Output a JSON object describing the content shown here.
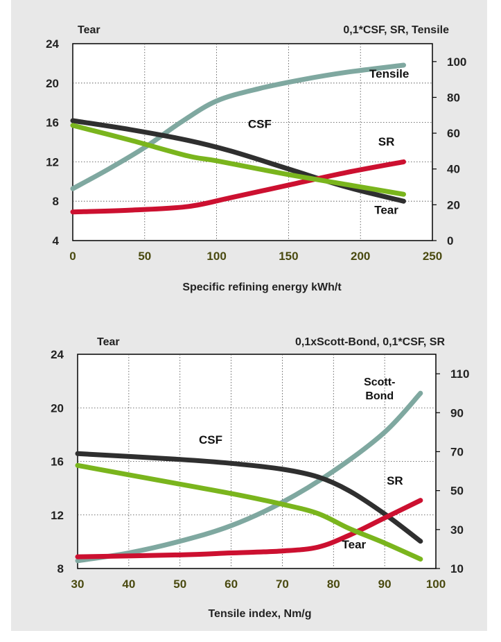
{
  "colors": {
    "background": "#e8e8e8",
    "tear": "#7ab51d",
    "csf": "#2f2f2f",
    "sr": "#cc1030",
    "tensile": "#7fa8a0",
    "scott_bond": "#7fa8a0",
    "x_tick_text": "#4a4a10"
  },
  "chart_data": [
    {
      "type": "line",
      "title": "",
      "xlabel": "Specific refining energy kWh/t",
      "y_left_label": "Tear",
      "y_right_label": "0,1*CSF, SR, Tensile",
      "xlim": [
        0,
        250
      ],
      "ylim_left": [
        4,
        24
      ],
      "ylim_right": [
        0,
        110
      ],
      "x_ticks": [
        "0",
        "50",
        "100",
        "150",
        "200",
        "250"
      ],
      "y_left_ticks": [
        "4",
        "8",
        "12",
        "16",
        "20",
        "24"
      ],
      "y_right_ticks": [
        "0",
        "20",
        "40",
        "60",
        "80",
        "100"
      ],
      "grid": true,
      "series": [
        {
          "name": "Tensile",
          "axis": "right",
          "color_key": "tensile",
          "label_anchor": [
            220,
            91
          ],
          "points": [
            [
              0,
              29
            ],
            [
              25,
              40
            ],
            [
              50,
              52
            ],
            [
              75,
              66
            ],
            [
              100,
              78
            ],
            [
              130,
              85
            ],
            [
              160,
              90
            ],
            [
              190,
              94
            ],
            [
              230,
              98
            ]
          ]
        },
        {
          "name": "CSF",
          "axis": "right",
          "color_key": "csf",
          "label_anchor": [
            130,
            63
          ],
          "points": [
            [
              0,
              67
            ],
            [
              40,
              62
            ],
            [
              80,
              56
            ],
            [
              110,
              50
            ],
            [
              150,
              40
            ],
            [
              190,
              30
            ],
            [
              230,
              22
            ]
          ]
        },
        {
          "name": "SR",
          "axis": "right",
          "color_key": "sr",
          "label_anchor": [
            218,
            53
          ],
          "points": [
            [
              0,
              16
            ],
            [
              40,
              17
            ],
            [
              80,
              19
            ],
            [
              110,
              24
            ],
            [
              150,
              31
            ],
            [
              190,
              38
            ],
            [
              230,
              44
            ]
          ]
        },
        {
          "name": "Tear",
          "axis": "left",
          "color_key": "tear",
          "label_anchor": [
            218,
            6.7
          ],
          "points": [
            [
              0,
              15.7
            ],
            [
              40,
              14.2
            ],
            [
              80,
              12.6
            ],
            [
              100,
              12.1
            ],
            [
              150,
              10.7
            ],
            [
              190,
              9.7
            ],
            [
              230,
              8.7
            ]
          ]
        }
      ]
    },
    {
      "type": "line",
      "title": "",
      "xlabel": "Tensile index, Nm/g",
      "y_left_label": "Tear",
      "y_right_label": "0,1xScott-Bond, 0,1*CSF, SR",
      "xlim": [
        30,
        100
      ],
      "ylim_left": [
        8,
        24
      ],
      "ylim_right": [
        10,
        120
      ],
      "x_ticks": [
        "30",
        "40",
        "50",
        "60",
        "70",
        "80",
        "90",
        "100"
      ],
      "y_left_ticks": [
        "8",
        "12",
        "16",
        "20",
        "24"
      ],
      "y_right_ticks": [
        "10",
        "30",
        "50",
        "70",
        "90",
        "110"
      ],
      "grid": true,
      "series": [
        {
          "name": "Scott-Bond",
          "label_lines": [
            "Scott-",
            "Bond"
          ],
          "axis": "right",
          "color_key": "scott_bond",
          "label_anchor": [
            89,
            104
          ],
          "points": [
            [
              30,
              14
            ],
            [
              40,
              18
            ],
            [
              50,
              24
            ],
            [
              60,
              32
            ],
            [
              70,
              44
            ],
            [
              80,
              60
            ],
            [
              90,
              80
            ],
            [
              97,
              100
            ]
          ]
        },
        {
          "name": "CSF",
          "axis": "right",
          "color_key": "csf",
          "label_anchor": [
            56,
            74
          ],
          "points": [
            [
              30,
              69
            ],
            [
              50,
              66
            ],
            [
              60,
              64
            ],
            [
              70,
              61
            ],
            [
              77,
              57
            ],
            [
              83,
              50
            ],
            [
              90,
              38
            ],
            [
              97,
              24
            ]
          ]
        },
        {
          "name": "SR",
          "axis": "right",
          "color_key": "sr",
          "label_anchor": [
            92,
            53
          ],
          "points": [
            [
              30,
              16
            ],
            [
              50,
              17
            ],
            [
              60,
              18
            ],
            [
              70,
              19
            ],
            [
              77,
              21
            ],
            [
              83,
              27
            ],
            [
              90,
              36
            ],
            [
              97,
              45
            ]
          ]
        },
        {
          "name": "Tear",
          "axis": "left",
          "color_key": "tear",
          "label_anchor": [
            84,
            9.5
          ],
          "points": [
            [
              30,
              15.7
            ],
            [
              50,
              14.3
            ],
            [
              60,
              13.6
            ],
            [
              70,
              12.8
            ],
            [
              77,
              12.1
            ],
            [
              83,
              11.0
            ],
            [
              90,
              9.9
            ],
            [
              97,
              8.7
            ]
          ]
        }
      ]
    }
  ]
}
